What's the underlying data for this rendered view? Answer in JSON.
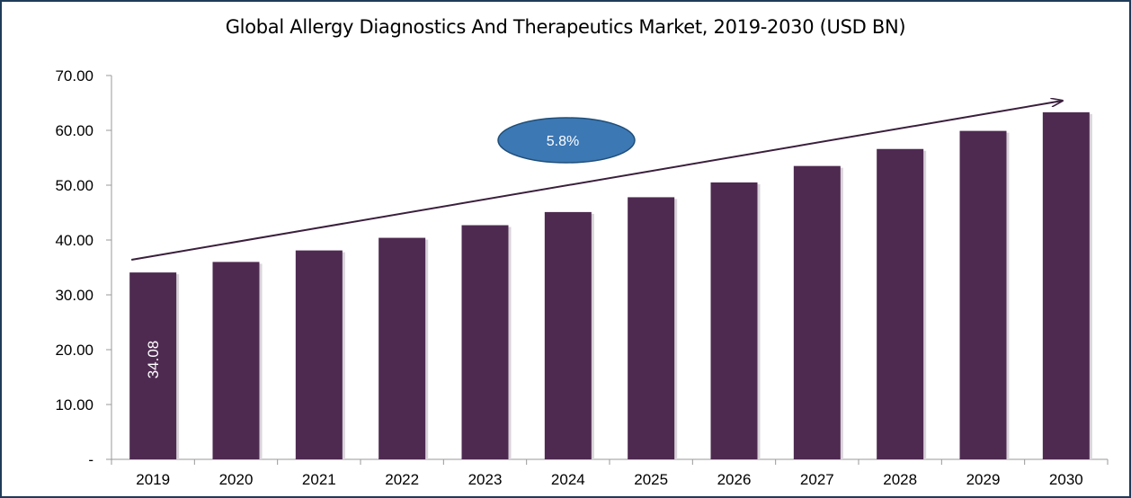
{
  "chart_data": {
    "type": "bar",
    "title": "Global Allergy Diagnostics And Therapeutics Market, 2019-2030 (USD BN)",
    "xlabel": "",
    "ylabel": "",
    "categories": [
      "2019",
      "2020",
      "2021",
      "2022",
      "2023",
      "2024",
      "2025",
      "2026",
      "2027",
      "2028",
      "2029",
      "2030"
    ],
    "values": [
      34.08,
      36.0,
      38.1,
      40.4,
      42.7,
      45.1,
      47.8,
      50.5,
      53.5,
      56.6,
      59.9,
      63.3
    ],
    "ylim": [
      0,
      70
    ],
    "yticks": [
      0,
      10,
      20,
      30,
      40,
      50,
      60,
      70
    ],
    "ytick_labels": [
      "-",
      "10.00",
      "20.00",
      "30.00",
      "40.00",
      "50.00",
      "60.00",
      "70.00"
    ],
    "data_labels": [
      {
        "category": "2019",
        "text": "34.08"
      }
    ],
    "annotations": [
      {
        "type": "trend-arrow"
      },
      {
        "type": "cagr-ellipse",
        "text": "5.8%"
      }
    ],
    "bar_color": "#4e2a51",
    "ellipse_color": "#3c78b4",
    "grid": false,
    "legend": "none"
  }
}
